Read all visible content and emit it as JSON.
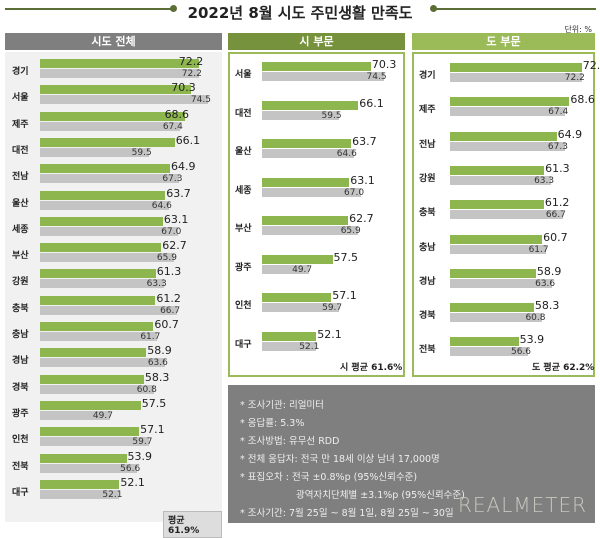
{
  "title": "2022년 8월 시도 주민생활 만족도",
  "unit": "단위: %",
  "colors": {
    "current": "#8db64f",
    "previous": "#c4c4c4"
  },
  "chart_data": [
    {
      "type": "bar",
      "title": "시도 전체",
      "categories": [
        "경기",
        "서울",
        "제주",
        "대전",
        "전남",
        "울산",
        "세종",
        "부산",
        "강원",
        "충북",
        "충남",
        "경남",
        "경북",
        "광주",
        "인천",
        "전북",
        "대구"
      ],
      "series": [
        {
          "values": [
            72.2,
            70.3,
            68.6,
            66.1,
            64.9,
            63.7,
            63.1,
            62.7,
            61.3,
            61.2,
            60.7,
            58.9,
            58.3,
            57.5,
            57.1,
            53.9,
            52.1
          ]
        },
        {
          "values": [
            72.2,
            74.5,
            67.4,
            59.5,
            67.3,
            64.6,
            67.0,
            65.9,
            63.3,
            66.7,
            61.7,
            63.6,
            60.8,
            49.7,
            59.7,
            56.6,
            52.1
          ]
        }
      ],
      "average": "평균 61.9%"
    },
    {
      "type": "bar",
      "title": "시 부문",
      "categories": [
        "서울",
        "대전",
        "울산",
        "세종",
        "부산",
        "광주",
        "인천",
        "대구"
      ],
      "series": [
        {
          "values": [
            70.3,
            66.1,
            63.7,
            63.1,
            62.7,
            57.5,
            57.1,
            52.1
          ]
        },
        {
          "values": [
            74.5,
            59.5,
            64.6,
            67.0,
            65.9,
            49.7,
            59.7,
            52.1
          ]
        }
      ],
      "average": "시 평균 61.6%"
    },
    {
      "type": "bar",
      "title": "도 부문",
      "categories": [
        "경기",
        "제주",
        "전남",
        "강원",
        "충북",
        "충남",
        "경남",
        "경북",
        "전북"
      ],
      "series": [
        {
          "values": [
            72.2,
            68.6,
            64.9,
            61.3,
            61.2,
            60.7,
            58.9,
            58.3,
            53.9
          ]
        },
        {
          "values": [
            72.2,
            67.4,
            67.3,
            63.3,
            66.7,
            61.7,
            63.6,
            60.8,
            56.6
          ]
        }
      ],
      "average": "도 평균 62.2%"
    }
  ],
  "notes": [
    "* 조사기관: 리얼미터",
    "* 응답률: 5.3%",
    "* 조사방법: 유무선 RDD",
    "* 전체 응답자: 전국 만 18세 이상 남녀 17,000명",
    "* 표집오차 : 전국 ±0.8%p (95%신뢰수준)",
    "광역자치단체별 ±3.1%p (95%신뢰수준)",
    "* 조사기간: 7월 25일 ~ 8월 1일, 8월 25일 ~ 30일"
  ],
  "logo": "REALMETER"
}
